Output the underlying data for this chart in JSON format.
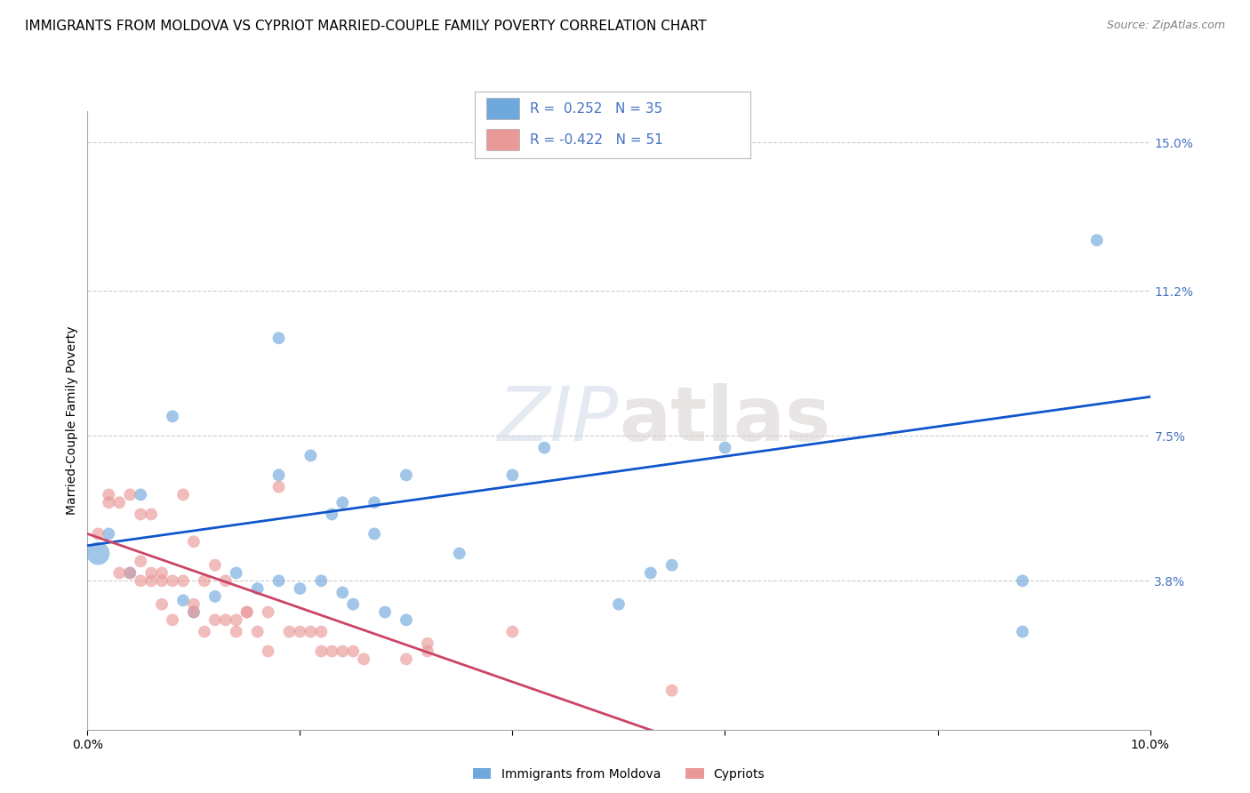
{
  "title": "IMMIGRANTS FROM MOLDOVA VS CYPRIOT MARRIED-COUPLE FAMILY POVERTY CORRELATION CHART",
  "source": "Source: ZipAtlas.com",
  "ylabel": "Married-Couple Family Poverty",
  "xmin": 0.0,
  "xmax": 0.1,
  "ymin": 0.0,
  "ymax": 0.158,
  "xticks": [
    0.0,
    0.02,
    0.04,
    0.06,
    0.08,
    0.1
  ],
  "xticklabels": [
    "0.0%",
    "",
    "",
    "",
    "",
    "10.0%"
  ],
  "ytick_positions": [
    0.0,
    0.038,
    0.075,
    0.112,
    0.15
  ],
  "yticklabels": [
    "",
    "3.8%",
    "7.5%",
    "11.2%",
    "15.0%"
  ],
  "blue_R": "0.252",
  "blue_N": "35",
  "pink_R": "-0.422",
  "pink_N": "51",
  "blue_color": "#6fa8dc",
  "pink_color": "#ea9999",
  "blue_line_color": "#1155cc",
  "pink_line_color": "#cc4466",
  "legend_label_blue": "Immigrants from Moldova",
  "legend_label_pink": "Cypriots",
  "watermark_zip": "ZIP",
  "watermark_atlas": "atlas",
  "grid_color": "#cccccc",
  "background_color": "#ffffff",
  "title_fontsize": 11,
  "axis_fontsize": 10,
  "tick_fontsize": 10,
  "tick_color_right": "#4472c4",
  "blue_scatter_x": [
    0.002,
    0.004,
    0.005,
    0.009,
    0.01,
    0.012,
    0.014,
    0.016,
    0.018,
    0.018,
    0.018,
    0.02,
    0.021,
    0.022,
    0.023,
    0.024,
    0.024,
    0.025,
    0.027,
    0.027,
    0.028,
    0.03,
    0.03,
    0.035,
    0.04,
    0.043,
    0.05,
    0.053,
    0.055,
    0.06,
    0.088,
    0.088,
    0.095,
    0.001,
    0.008
  ],
  "blue_scatter_y": [
    0.05,
    0.04,
    0.06,
    0.033,
    0.03,
    0.034,
    0.04,
    0.036,
    0.038,
    0.065,
    0.1,
    0.036,
    0.07,
    0.038,
    0.055,
    0.035,
    0.058,
    0.032,
    0.05,
    0.058,
    0.03,
    0.028,
    0.065,
    0.045,
    0.065,
    0.072,
    0.032,
    0.04,
    0.042,
    0.072,
    0.025,
    0.038,
    0.125,
    0.045,
    0.08
  ],
  "blue_scatter_sizes": [
    100,
    100,
    100,
    100,
    100,
    100,
    100,
    100,
    100,
    100,
    100,
    100,
    100,
    100,
    100,
    100,
    100,
    100,
    100,
    100,
    100,
    100,
    100,
    100,
    100,
    100,
    100,
    100,
    100,
    100,
    100,
    100,
    100,
    350,
    100
  ],
  "pink_scatter_x": [
    0.001,
    0.002,
    0.002,
    0.003,
    0.003,
    0.004,
    0.004,
    0.005,
    0.005,
    0.005,
    0.006,
    0.006,
    0.006,
    0.007,
    0.007,
    0.007,
    0.008,
    0.008,
    0.009,
    0.009,
    0.01,
    0.01,
    0.01,
    0.011,
    0.011,
    0.012,
    0.012,
    0.013,
    0.013,
    0.014,
    0.014,
    0.015,
    0.015,
    0.016,
    0.017,
    0.017,
    0.018,
    0.019,
    0.02,
    0.021,
    0.022,
    0.022,
    0.023,
    0.024,
    0.025,
    0.026,
    0.03,
    0.032,
    0.032,
    0.04,
    0.055
  ],
  "pink_scatter_y": [
    0.05,
    0.06,
    0.058,
    0.058,
    0.04,
    0.04,
    0.06,
    0.055,
    0.043,
    0.038,
    0.038,
    0.04,
    0.055,
    0.038,
    0.04,
    0.032,
    0.038,
    0.028,
    0.06,
    0.038,
    0.03,
    0.032,
    0.048,
    0.038,
    0.025,
    0.042,
    0.028,
    0.038,
    0.028,
    0.028,
    0.025,
    0.03,
    0.03,
    0.025,
    0.03,
    0.02,
    0.062,
    0.025,
    0.025,
    0.025,
    0.02,
    0.025,
    0.02,
    0.02,
    0.02,
    0.018,
    0.018,
    0.022,
    0.02,
    0.025,
    0.01
  ],
  "pink_scatter_sizes": [
    100,
    100,
    100,
    100,
    100,
    100,
    100,
    100,
    100,
    100,
    100,
    100,
    100,
    100,
    100,
    100,
    100,
    100,
    100,
    100,
    100,
    100,
    100,
    100,
    100,
    100,
    100,
    100,
    100,
    100,
    100,
    100,
    100,
    100,
    100,
    100,
    100,
    100,
    100,
    100,
    100,
    100,
    100,
    100,
    100,
    100,
    100,
    100,
    100,
    100,
    100
  ],
  "blue_line_x0": 0.0,
  "blue_line_x1": 0.1,
  "blue_line_y0": 0.047,
  "blue_line_y1": 0.085,
  "pink_line_x0": 0.0,
  "pink_line_x1": 0.055,
  "pink_line_y0": 0.05,
  "pink_line_y1": -0.002
}
